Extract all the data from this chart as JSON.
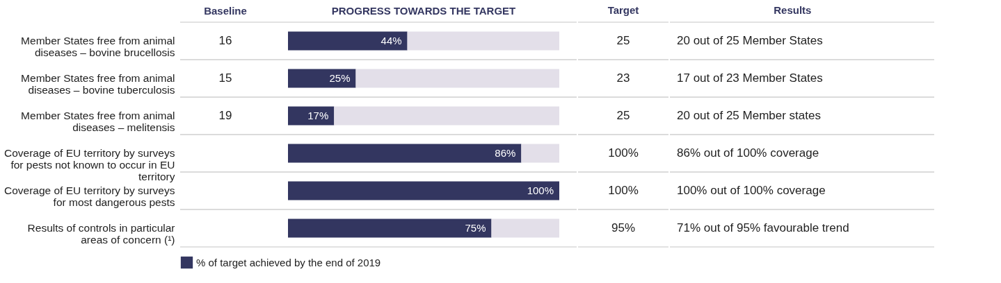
{
  "chart_data": [
    {
      "type": "other",
      "title": "Baseline",
      "annotations": [
        "16",
        "15",
        "19"
      ]
    },
    {
      "type": "bar",
      "orientation": "horizontal",
      "stacked": true,
      "title": "PROGRESS TOWARDS THE TARGET",
      "categories": [
        "Member States free from animal diseases – bovine brucellosis",
        "Member States free from animal diseases – bovine tuberculosis",
        "Member States free from animal diseases – melitensis",
        "Coverage of EU territory by surveys for pests not known to occur in EU territory",
        "Coverage of EU territory by surveys for most dangerous pests",
        "Results of controls in particular areas of concern (¹)"
      ],
      "series": [
        {
          "name": "% of target achieved by the end of 2019",
          "color": "#333660",
          "values": [
            44,
            25,
            17,
            86,
            100,
            75
          ],
          "value_labels": [
            "44%",
            "25%",
            "17%",
            "86%",
            "100%",
            "75%"
          ]
        },
        {
          "color": "#e3dfe9",
          "values": [
            56,
            75,
            83,
            14,
            0,
            25
          ]
        }
      ],
      "legend": "bottom",
      "grid": "y"
    },
    {
      "type": "other",
      "title": "Target",
      "annotations": [
        "25",
        "23",
        "25",
        "100%",
        "100%",
        "95%"
      ]
    },
    {
      "type": "other",
      "title": "Results",
      "annotations": [
        "20 out of 25 Member States",
        "17 out of 23 Member States",
        "20 out of 25 Member states",
        "86% out of 100% coverage",
        "100% out of 100% coverage",
        "71% out of 95% favourable trend"
      ]
    }
  ]
}
